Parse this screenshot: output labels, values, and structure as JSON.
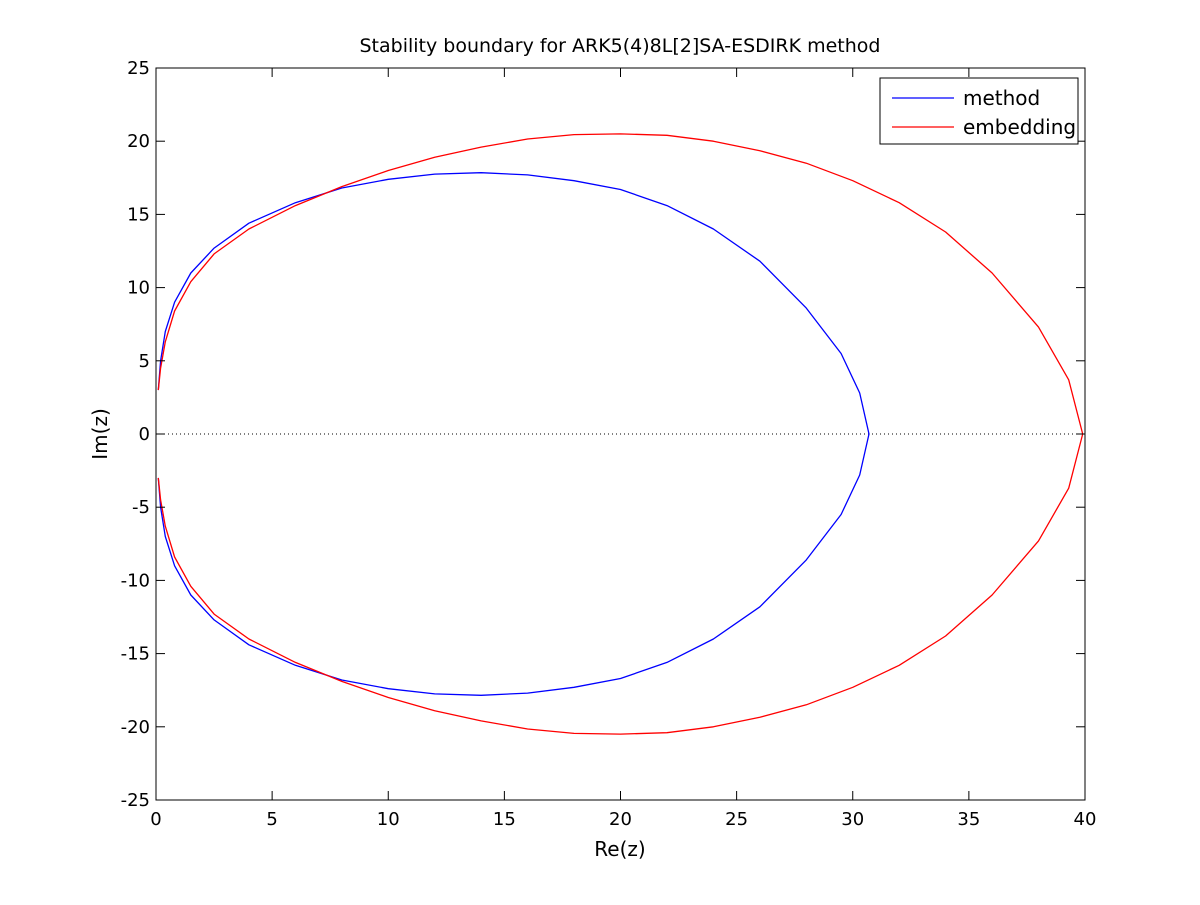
{
  "chart_data": {
    "type": "line",
    "title": "Stability boundary for ARK5(4)8L[2]SA-ESDIRK method",
    "xlabel": "Re(z)",
    "ylabel": "Im(z)",
    "xlim": [
      0,
      40
    ],
    "ylim": [
      -25,
      25
    ],
    "xticks": [
      0,
      5,
      10,
      15,
      20,
      25,
      30,
      35,
      40
    ],
    "yticks": [
      -25,
      -20,
      -15,
      -10,
      -5,
      0,
      5,
      10,
      15,
      20,
      25
    ],
    "xtick_labels": [
      "0",
      "5",
      "10",
      "15",
      "20",
      "25",
      "30",
      "35",
      "40"
    ],
    "ytick_labels": [
      "-25",
      "-20",
      "-15",
      "-10",
      "-5",
      "0",
      "5",
      "10",
      "15",
      "20",
      "25"
    ],
    "grid": false,
    "legend_position": "top-right",
    "reference_line": {
      "y": 0,
      "style": "dotted",
      "color": "#000000"
    },
    "series": [
      {
        "name": "method",
        "color": "#0000ff",
        "x": [
          0.1,
          0.2,
          0.4,
          0.8,
          1.5,
          2.5,
          4.0,
          6.0,
          8.0,
          10.0,
          12.0,
          14.0,
          16.0,
          18.0,
          20.0,
          22.0,
          24.0,
          26.0,
          28.0,
          29.5,
          30.3,
          30.7,
          30.7,
          30.3,
          29.5,
          28.0,
          26.0,
          24.0,
          22.0,
          20.0,
          18.0,
          16.0,
          14.0,
          12.0,
          10.0,
          8.0,
          6.0,
          4.0,
          2.5,
          1.5,
          0.8,
          0.4,
          0.2,
          0.1
        ],
        "y": [
          3.0,
          5.0,
          7.0,
          9.0,
          11.0,
          12.7,
          14.4,
          15.8,
          16.8,
          17.4,
          17.75,
          17.85,
          17.7,
          17.3,
          16.7,
          15.6,
          14.0,
          11.8,
          8.6,
          5.5,
          2.8,
          0.0,
          0.0,
          -2.8,
          -5.5,
          -8.6,
          -11.8,
          -14.0,
          -15.6,
          -16.7,
          -17.3,
          -17.7,
          -17.85,
          -17.75,
          -17.4,
          -16.8,
          -15.8,
          -14.4,
          -12.7,
          -11.0,
          -9.0,
          -7.0,
          -5.0,
          -3.0
        ]
      },
      {
        "name": "embedding",
        "color": "#ff0000",
        "x": [
          0.1,
          0.2,
          0.4,
          0.8,
          1.5,
          2.5,
          4.0,
          6.0,
          8.0,
          10.0,
          12.0,
          14.0,
          16.0,
          18.0,
          20.0,
          22.0,
          24.0,
          26.0,
          28.0,
          30.0,
          32.0,
          34.0,
          36.0,
          38.0,
          39.3,
          39.9,
          39.9,
          39.3,
          38.0,
          36.0,
          34.0,
          32.0,
          30.0,
          28.0,
          26.0,
          24.0,
          22.0,
          20.0,
          18.0,
          16.0,
          14.0,
          12.0,
          10.0,
          8.0,
          6.0,
          4.0,
          2.5,
          1.5,
          0.8,
          0.4,
          0.2,
          0.1
        ],
        "y": [
          3.0,
          4.5,
          6.3,
          8.4,
          10.4,
          12.3,
          14.0,
          15.6,
          16.9,
          18.0,
          18.9,
          19.6,
          20.15,
          20.45,
          20.5,
          20.4,
          20.0,
          19.35,
          18.5,
          17.3,
          15.8,
          13.8,
          11.0,
          7.3,
          3.7,
          0.0,
          0.0,
          -3.7,
          -7.3,
          -11.0,
          -13.8,
          -15.8,
          -17.3,
          -18.5,
          -19.35,
          -20.0,
          -20.4,
          -20.5,
          -20.45,
          -20.15,
          -19.6,
          -18.9,
          -18.0,
          -16.9,
          -15.6,
          -14.0,
          -12.3,
          -10.4,
          -8.4,
          -6.3,
          -4.5,
          -3.0
        ]
      }
    ]
  }
}
